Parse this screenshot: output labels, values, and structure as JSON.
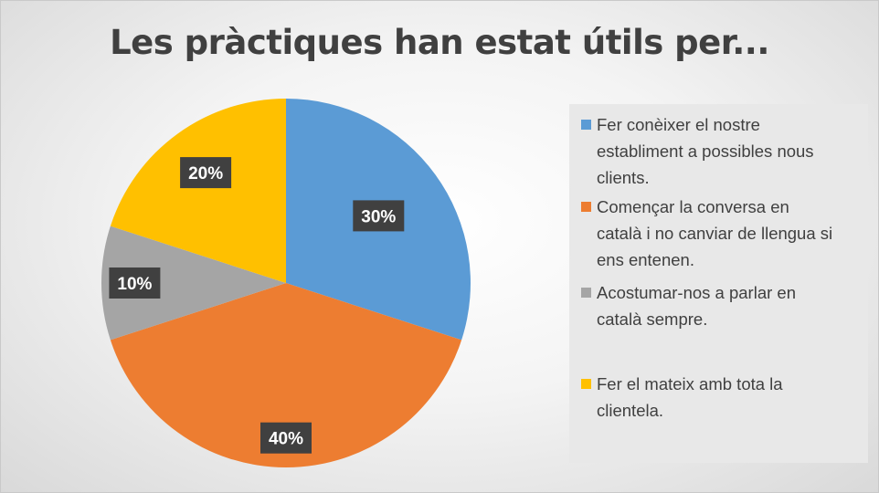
{
  "chart_data": {
    "type": "pie",
    "title": "Les pràctiques han estat útils per...",
    "categories": [
      "Fer conèixer el nostre establiment a possibles nous clients.",
      "Començar la conversa en català i no canviar de llengua si ens entenen.",
      "Acostumar-nos a parlar en català sempre.",
      "Fer el mateix amb tota la clientela."
    ],
    "values": [
      30,
      40,
      10,
      20
    ],
    "data_labels": [
      "30%",
      "40%",
      "10%",
      "20%"
    ],
    "colors": [
      "#5B9BD5",
      "#ED7D31",
      "#A5A5A5",
      "#FFC000"
    ],
    "legend_position": "right"
  },
  "legend": {
    "lines": [
      [
        "Fer conèixer el nostre",
        "establiment a possibles nous",
        "clients."
      ],
      [
        "Començar la conversa en",
        "català i no canviar de llengua si",
        "ens entenen."
      ],
      [
        "Acostumar-nos a parlar en",
        "català sempre."
      ],
      [
        "Fer el mateix amb tota la",
        "clientela."
      ]
    ]
  },
  "style": {
    "label_bg": "#404040",
    "label_text": "#ffffff",
    "title_color": "#404040",
    "legend_bg": "#e8e8e8"
  }
}
